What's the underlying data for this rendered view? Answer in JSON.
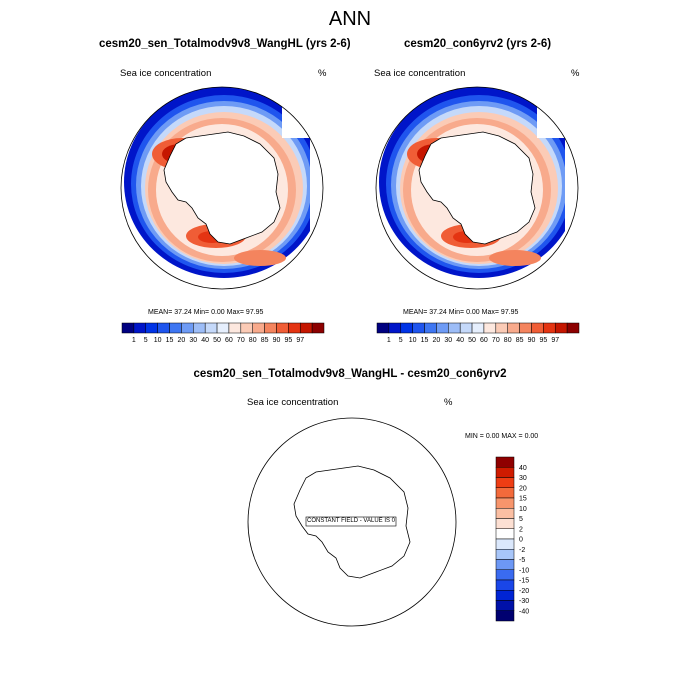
{
  "figure": {
    "title": "ANN"
  },
  "colors": {
    "concentration_scale": [
      "#000080",
      "#0015c9",
      "#0033e6",
      "#1f55ee",
      "#3e76f2",
      "#6e9bf5",
      "#9dbdf7",
      "#c5d9fa",
      "#e6effd",
      "#fde8df",
      "#fbcbb6",
      "#f8aa8c",
      "#f4845e",
      "#f05d36",
      "#e43412",
      "#c51600",
      "#8c0000"
    ],
    "difference_scale": [
      "#000070",
      "#0011a8",
      "#0024d4",
      "#1a46e8",
      "#3a6bf0",
      "#6d98f5",
      "#a8c6f9",
      "#dbe8fc",
      "#ffffff",
      "#fde0d3",
      "#fbbfa3",
      "#f7956c",
      "#f36a3b",
      "#ee3d14",
      "#cf1b00",
      "#8f0000"
    ]
  },
  "chart_data": [
    {
      "type": "heatmap",
      "title": "cesm20_sen_Totalmodv9v8_WangHL (yrs 2-6)",
      "subtitle": "Sea ice concentration",
      "units": "%",
      "stats": {
        "mean_label": "MEAN=",
        "mean": "37.24",
        "min_label": "Min=",
        "min": "0.00",
        "max_label": "Max=",
        "max": "97.95"
      },
      "colorbar_levels": [
        "1",
        "5",
        "10",
        "15",
        "20",
        "30",
        "40",
        "50",
        "60",
        "70",
        "80",
        "85",
        "90",
        "95",
        "97"
      ]
    },
    {
      "type": "heatmap",
      "title": "cesm20_con6yrv2 (yrs 2-6)",
      "subtitle": "Sea ice concentration",
      "units": "%",
      "stats": {
        "mean_label": "MEAN=",
        "mean": "37.24",
        "min_label": "Min=",
        "min": "0.00",
        "max_label": "Max=",
        "max": "97.95"
      },
      "colorbar_levels": [
        "1",
        "5",
        "10",
        "15",
        "20",
        "30",
        "40",
        "50",
        "60",
        "70",
        "80",
        "85",
        "90",
        "95",
        "97"
      ]
    },
    {
      "type": "heatmap",
      "title": "cesm20_sen_Totalmodv9v8_WangHL - cesm20_con6yrv2",
      "subtitle": "Sea ice concentration",
      "units": "%",
      "stats": {
        "min_label": "MIN =",
        "min": "0.00",
        "max_label": "MAX =",
        "max": "0.00"
      },
      "annotation": "CONSTANT FIELD - VALUE IS 0",
      "colorbar_levels": [
        "40",
        "30",
        "20",
        "15",
        "10",
        "5",
        "2",
        "0",
        "-2",
        "-5",
        "-10",
        "-15",
        "-20",
        "-30",
        "-40"
      ]
    }
  ]
}
